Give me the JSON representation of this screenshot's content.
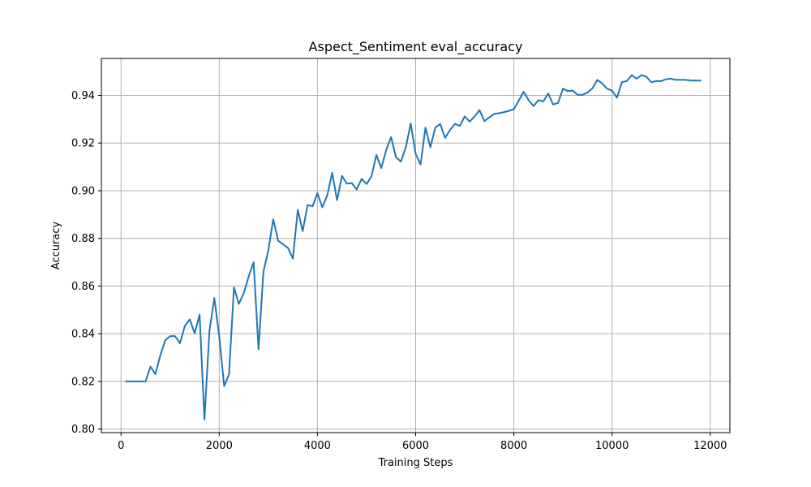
{
  "chart_data": {
    "type": "line",
    "title": "Aspect_Sentiment eval_accuracy",
    "xlabel": "Training Steps",
    "ylabel": "Accuracy",
    "xlim": [
      -400,
      12400
    ],
    "ylim": [
      0.7985,
      0.9555
    ],
    "xticks": [
      0,
      2000,
      4000,
      6000,
      8000,
      10000,
      12000
    ],
    "yticks": [
      0.8,
      0.82,
      0.84,
      0.86,
      0.88,
      0.9,
      0.92,
      0.94
    ],
    "xtick_labels": [
      "0",
      "2000",
      "4000",
      "6000",
      "8000",
      "10000",
      "12000"
    ],
    "ytick_labels": [
      "0.80",
      "0.82",
      "0.84",
      "0.86",
      "0.88",
      "0.90",
      "0.92",
      "0.94"
    ],
    "grid": true,
    "line_color": "#1f77b4",
    "grid_color": "#b0b0b0",
    "series": [
      {
        "x": [
          100,
          200,
          300,
          400,
          500,
          600,
          700,
          800,
          900,
          1000,
          1100,
          1200,
          1300,
          1400,
          1500,
          1600,
          1700,
          1800,
          1900,
          2000,
          2100,
          2200,
          2300,
          2400,
          2500,
          2600,
          2700,
          2800,
          2900,
          3000,
          3100,
          3200,
          3300,
          3400,
          3500,
          3600,
          3700,
          3800,
          3900,
          4000,
          4100,
          4200,
          4300,
          4400,
          4500,
          4600,
          4700,
          4800,
          4900,
          5000,
          5100,
          5200,
          5300,
          5400,
          5500,
          5600,
          5700,
          5800,
          5900,
          6000,
          6100,
          6200,
          6300,
          6400,
          6500,
          6600,
          6700,
          6800,
          6900,
          7000,
          7100,
          7200,
          7300,
          7400,
          7500,
          7600,
          7700,
          7800,
          7900,
          8000,
          8100,
          8200,
          8300,
          8400,
          8500,
          8600,
          8700,
          8800,
          8900,
          9000,
          9100,
          9200,
          9300,
          9400,
          9500,
          9600,
          9700,
          9800,
          9900,
          10000,
          10100,
          10200,
          10300,
          10400,
          10500,
          10600,
          10700,
          10800,
          10900,
          11000,
          11100,
          11200,
          11300,
          11400,
          11500,
          11600,
          11700,
          11800
        ],
        "y": [
          0.82,
          0.82,
          0.82,
          0.82,
          0.82,
          0.8262,
          0.823,
          0.831,
          0.8372,
          0.839,
          0.839,
          0.836,
          0.8432,
          0.846,
          0.8402,
          0.848,
          0.804,
          0.841,
          0.855,
          0.839,
          0.818,
          0.823,
          0.8595,
          0.8525,
          0.857,
          0.864,
          0.87,
          0.8335,
          0.866,
          0.875,
          0.888,
          0.879,
          0.8775,
          0.876,
          0.8715,
          0.892,
          0.883,
          0.894,
          0.8935,
          0.899,
          0.893,
          0.898,
          0.9075,
          0.896,
          0.9062,
          0.903,
          0.9032,
          0.9005,
          0.905,
          0.9028,
          0.906,
          0.915,
          0.9095,
          0.917,
          0.9225,
          0.914,
          0.9122,
          0.9182,
          0.9282,
          0.9155,
          0.911,
          0.9265,
          0.9182,
          0.9265,
          0.928,
          0.9222,
          0.9255,
          0.928,
          0.9272,
          0.9312,
          0.929,
          0.9312,
          0.9338,
          0.9292,
          0.9308,
          0.9322,
          0.9325,
          0.933,
          0.9335,
          0.9342,
          0.9378,
          0.9415,
          0.938,
          0.9355,
          0.938,
          0.9375,
          0.9408,
          0.9362,
          0.9368,
          0.9428,
          0.9418,
          0.942,
          0.9402,
          0.9402,
          0.9412,
          0.943,
          0.9465,
          0.945,
          0.9428,
          0.942,
          0.939,
          0.9455,
          0.946,
          0.9485,
          0.947,
          0.9485,
          0.9478,
          0.9455,
          0.946,
          0.946,
          0.9468,
          0.947,
          0.9465,
          0.9465,
          0.9465,
          0.9462,
          0.9462,
          0.9462
        ]
      }
    ]
  }
}
